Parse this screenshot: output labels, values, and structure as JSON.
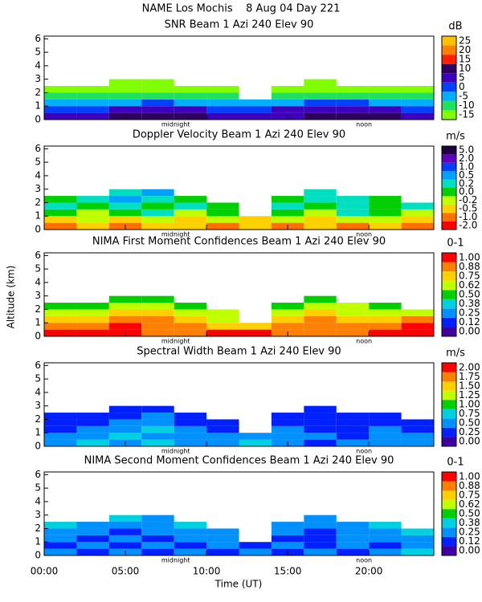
{
  "title": "NAME Los Mochis    8 Aug 04 Day 221",
  "x_label": "Time (UT)",
  "y_label": "Altitude (km)",
  "chart_data": [
    {
      "type": "heatmap",
      "title": "SNR Beam 1 Azi 240 Elev 90",
      "unit": "dB",
      "xlim": [
        0,
        24
      ],
      "ylim": [
        0,
        6.2
      ],
      "yticks": [
        0,
        1,
        2,
        3,
        4,
        5,
        6
      ],
      "annotations": [
        {
          "text": "midnight",
          "x": 8.1
        },
        {
          "text": "noon",
          "x": 19.7
        }
      ],
      "xbins": [
        0,
        2,
        4,
        6,
        8,
        10,
        12,
        14,
        16,
        18,
        20,
        22,
        24
      ],
      "ybins": [
        0,
        0.5,
        1,
        1.5,
        2,
        2.5,
        3
      ],
      "z": [
        [
          5,
          5,
          10,
          10,
          10,
          5,
          5,
          5,
          10,
          10,
          10,
          5
        ],
        [
          0,
          0,
          5,
          5,
          5,
          0,
          0,
          5,
          5,
          5,
          5,
          0
        ],
        [
          -5,
          -5,
          -5,
          0,
          -5,
          -5,
          -5,
          -5,
          0,
          0,
          -5,
          -5
        ],
        [
          -10,
          -10,
          -10,
          -10,
          -10,
          -10,
          null,
          -10,
          -10,
          -10,
          -10,
          -10
        ],
        [
          -15,
          -15,
          -15,
          -15,
          -15,
          -15,
          null,
          -15,
          -15,
          -15,
          -15,
          -15
        ],
        [
          null,
          null,
          -15,
          -15,
          null,
          null,
          null,
          null,
          -15,
          null,
          null,
          null
        ]
      ],
      "colorbar_ticks": [
        -15,
        -10,
        -5,
        0,
        5,
        10,
        15,
        20,
        25
      ],
      "colors": [
        "#80ff00",
        "#20e060",
        "#00b0ff",
        "#0040ff",
        "#4000c0",
        "#300060",
        "#ff2000",
        "#ff8000",
        "#ffc000"
      ]
    },
    {
      "type": "heatmap",
      "title": "Doppler Velocity Beam 1 Azi 240 Elev 90",
      "unit": "m/s",
      "xlim": [
        0,
        24
      ],
      "ylim": [
        0,
        6.2
      ],
      "yticks": [
        0,
        1,
        2,
        3,
        4,
        5,
        6
      ],
      "annotations": [
        {
          "text": "midnight",
          "x": 8.1
        },
        {
          "text": "noon",
          "x": 19.7
        }
      ],
      "xbins": [
        0,
        2,
        4,
        6,
        8,
        10,
        12,
        14,
        16,
        18,
        20,
        22,
        24
      ],
      "ybins": [
        0,
        0.5,
        1,
        1.5,
        2,
        2.5,
        3
      ],
      "z": [
        [
          -1,
          -0.5,
          -1,
          -0.5,
          -0.5,
          -1,
          -0.5,
          -1,
          -0.5,
          -1,
          -0.5,
          -1
        ],
        [
          -0.5,
          -0.2,
          -0.5,
          -0.2,
          -0.5,
          -0.2,
          -0.5,
          -0.2,
          -0.5,
          -0.2,
          -0.2,
          -0.5
        ],
        [
          0,
          -0.2,
          0,
          0.2,
          -0.2,
          0,
          null,
          0,
          -0.2,
          0.2,
          0,
          -0.2
        ],
        [
          0.2,
          0,
          0.2,
          0,
          0.2,
          0,
          null,
          0.2,
          0,
          0.2,
          0,
          0.2
        ],
        [
          0,
          0.2,
          0.5,
          0.2,
          0,
          null,
          null,
          0,
          0.2,
          0.2,
          0,
          null
        ],
        [
          null,
          null,
          0.2,
          0.5,
          null,
          null,
          null,
          null,
          0.2,
          null,
          null,
          null
        ]
      ],
      "colorbar_ticks": [
        {
          "value": -2,
          "label": "-2.0"
        },
        {
          "value": -1,
          "label": "-1.0"
        },
        -0.5,
        -0.2,
        {
          "value": 0,
          "label": "0.0"
        },
        0.2,
        0.5,
        {
          "value": 1,
          "label": "1.0"
        },
        {
          "value": 2,
          "label": "2.0"
        },
        {
          "value": 5,
          "label": "5.0"
        }
      ],
      "colors": [
        "#ff0000",
        "#ff7000",
        "#ffd000",
        "#c0ff00",
        "#00d000",
        "#00e0c0",
        "#00a0ff",
        "#0040ff",
        "#6000c0",
        "#200040"
      ]
    },
    {
      "type": "heatmap",
      "title": "NIMA First Moment Confidences Beam 1 Azi 240 Elev 90",
      "unit": "0-1",
      "xlim": [
        0,
        24
      ],
      "ylim": [
        0,
        6.2
      ],
      "yticks": [
        0,
        1,
        2,
        3,
        4,
        5,
        6
      ],
      "annotations": [
        {
          "text": "midnight",
          "x": 8.1
        },
        {
          "text": "noon",
          "x": 19.7
        }
      ],
      "xbins": [
        0,
        2,
        4,
        6,
        8,
        10,
        12,
        14,
        16,
        18,
        20,
        22,
        24
      ],
      "ybins": [
        0,
        0.5,
        1,
        1.5,
        2,
        2.5,
        3
      ],
      "z": [
        [
          1,
          1,
          1,
          0.88,
          0.88,
          1,
          1,
          0.88,
          0.88,
          0.88,
          1,
          1
        ],
        [
          0.88,
          0.88,
          1,
          0.88,
          0.88,
          0.75,
          0.75,
          0.88,
          0.88,
          0.88,
          0.88,
          1
        ],
        [
          0.75,
          0.75,
          0.88,
          0.88,
          0.75,
          0.62,
          null,
          0.75,
          0.88,
          0.75,
          0.75,
          0.88
        ],
        [
          0.62,
          0.62,
          0.75,
          0.75,
          0.62,
          0.62,
          null,
          0.62,
          0.75,
          0.62,
          0.62,
          0.62
        ],
        [
          0.5,
          0.5,
          0.62,
          0.62,
          0.5,
          null,
          null,
          0.5,
          0.62,
          0.62,
          0.5,
          null
        ],
        [
          null,
          null,
          0.5,
          0.5,
          null,
          null,
          null,
          null,
          0.5,
          null,
          null,
          null
        ]
      ],
      "colorbar_ticks": [
        {
          "value": 0,
          "label": "0.00"
        },
        0.12,
        0.25,
        0.38,
        {
          "value": 0.5,
          "label": "0.50"
        },
        0.62,
        0.75,
        0.88,
        {
          "value": 1,
          "label": "1.00"
        }
      ],
      "colors": [
        "#4000a0",
        "#0020ff",
        "#0090ff",
        "#00d0e0",
        "#00d000",
        "#c0ff00",
        "#ffd000",
        "#ff8000",
        "#ff0000"
      ]
    },
    {
      "type": "heatmap",
      "title": "Spectral Width Beam 1 Azi 240 Elev 90",
      "unit": "m/s",
      "xlim": [
        0,
        24
      ],
      "ylim": [
        0,
        6.2
      ],
      "yticks": [
        0,
        1,
        2,
        3,
        4,
        5,
        6
      ],
      "annotations": [
        {
          "text": "midnight",
          "x": 8.1
        },
        {
          "text": "noon",
          "x": 19.7
        }
      ],
      "xbins": [
        0,
        2,
        4,
        6,
        8,
        10,
        12,
        14,
        16,
        18,
        20,
        22,
        24
      ],
      "ybins": [
        0,
        0.5,
        1,
        1.5,
        2,
        2.5,
        3
      ],
      "z": [
        [
          0.5,
          0.75,
          0.5,
          0.75,
          0.5,
          0.5,
          0.75,
          0.5,
          0.25,
          0.5,
          0.5,
          0.5
        ],
        [
          0.5,
          0.5,
          0.75,
          0.5,
          0.5,
          0.5,
          0.5,
          0.5,
          0.5,
          0.25,
          0.5,
          0.5
        ],
        [
          0.25,
          0.5,
          0.5,
          0.75,
          0.5,
          0.25,
          null,
          0.5,
          0.25,
          0.25,
          0.5,
          0.25
        ],
        [
          0.25,
          0.25,
          0.5,
          0.5,
          0.25,
          0.25,
          null,
          0.25,
          0.25,
          0.25,
          0.25,
          0.25
        ],
        [
          0.25,
          0.25,
          0.25,
          0.5,
          0.25,
          null,
          null,
          0.25,
          0.25,
          0.25,
          0.25,
          null
        ],
        [
          null,
          null,
          0.25,
          0.25,
          null,
          null,
          null,
          null,
          0.25,
          null,
          null,
          null
        ]
      ],
      "colorbar_ticks": [
        {
          "value": 0,
          "label": "0.00"
        },
        0.25,
        {
          "value": 0.5,
          "label": "0.50"
        },
        0.75,
        {
          "value": 1,
          "label": "1.00"
        },
        1.25,
        {
          "value": 1.5,
          "label": "1.50"
        },
        1.75,
        {
          "value": 2,
          "label": "2.00"
        }
      ],
      "colors": [
        "#4000a0",
        "#0020ff",
        "#0090ff",
        "#00d0e0",
        "#00d000",
        "#c0ff00",
        "#ffd000",
        "#ff8000",
        "#ff0000"
      ]
    },
    {
      "type": "heatmap",
      "title": "NIMA Second Moment Confidences Beam 1 Azi 240 Elev 90",
      "unit": "0-1",
      "xlim": [
        0,
        24
      ],
      "ylim": [
        0,
        6.2
      ],
      "yticks": [
        0,
        1,
        2,
        3,
        4,
        5,
        6
      ],
      "xticks": [
        {
          "value": 0,
          "label": "00:00"
        },
        {
          "value": 5,
          "label": "05:00"
        },
        {
          "value": 10,
          "label": "10:00"
        },
        {
          "value": 15,
          "label": "15:00"
        },
        {
          "value": 20,
          "label": "20:00"
        }
      ],
      "annotations": [
        {
          "text": "midnight",
          "x": 8.1
        },
        {
          "text": "noon",
          "x": 19.7
        }
      ],
      "xbins": [
        0,
        2,
        4,
        6,
        8,
        10,
        12,
        14,
        16,
        18,
        20,
        22,
        24
      ],
      "ybins": [
        0,
        0.5,
        1,
        1.5,
        2,
        2.5,
        3
      ],
      "z": [
        [
          0.25,
          0.12,
          0.25,
          0.12,
          0.25,
          0.12,
          0.25,
          0.12,
          0.25,
          0.12,
          0.25,
          0.38
        ],
        [
          0.12,
          0.25,
          0.12,
          0.25,
          0.12,
          0.25,
          0.12,
          0.25,
          0.12,
          0.25,
          0.12,
          0.25
        ],
        [
          0.25,
          0.12,
          0.25,
          0.12,
          0.25,
          0.25,
          null,
          0.12,
          0.12,
          0.25,
          0.25,
          0.25
        ],
        [
          0.25,
          0.25,
          0.12,
          0.25,
          0.25,
          0.25,
          null,
          0.25,
          0.12,
          0.25,
          0.25,
          0.38
        ],
        [
          0.38,
          0.25,
          0.25,
          0.25,
          0.38,
          null,
          null,
          0.25,
          0.25,
          0.25,
          0.38,
          null
        ],
        [
          null,
          null,
          0.38,
          0.25,
          null,
          null,
          null,
          null,
          0.25,
          null,
          null,
          null
        ]
      ],
      "colorbar_ticks": [
        {
          "value": 0,
          "label": "0.00"
        },
        0.12,
        0.25,
        0.38,
        {
          "value": 0.5,
          "label": "0.50"
        },
        0.62,
        0.75,
        0.88,
        {
          "value": 1,
          "label": "1.00"
        }
      ],
      "colors": [
        "#4000a0",
        "#0020ff",
        "#0090ff",
        "#00d0e0",
        "#00d000",
        "#c0ff00",
        "#ffd000",
        "#ff8000",
        "#ff0000"
      ]
    }
  ]
}
